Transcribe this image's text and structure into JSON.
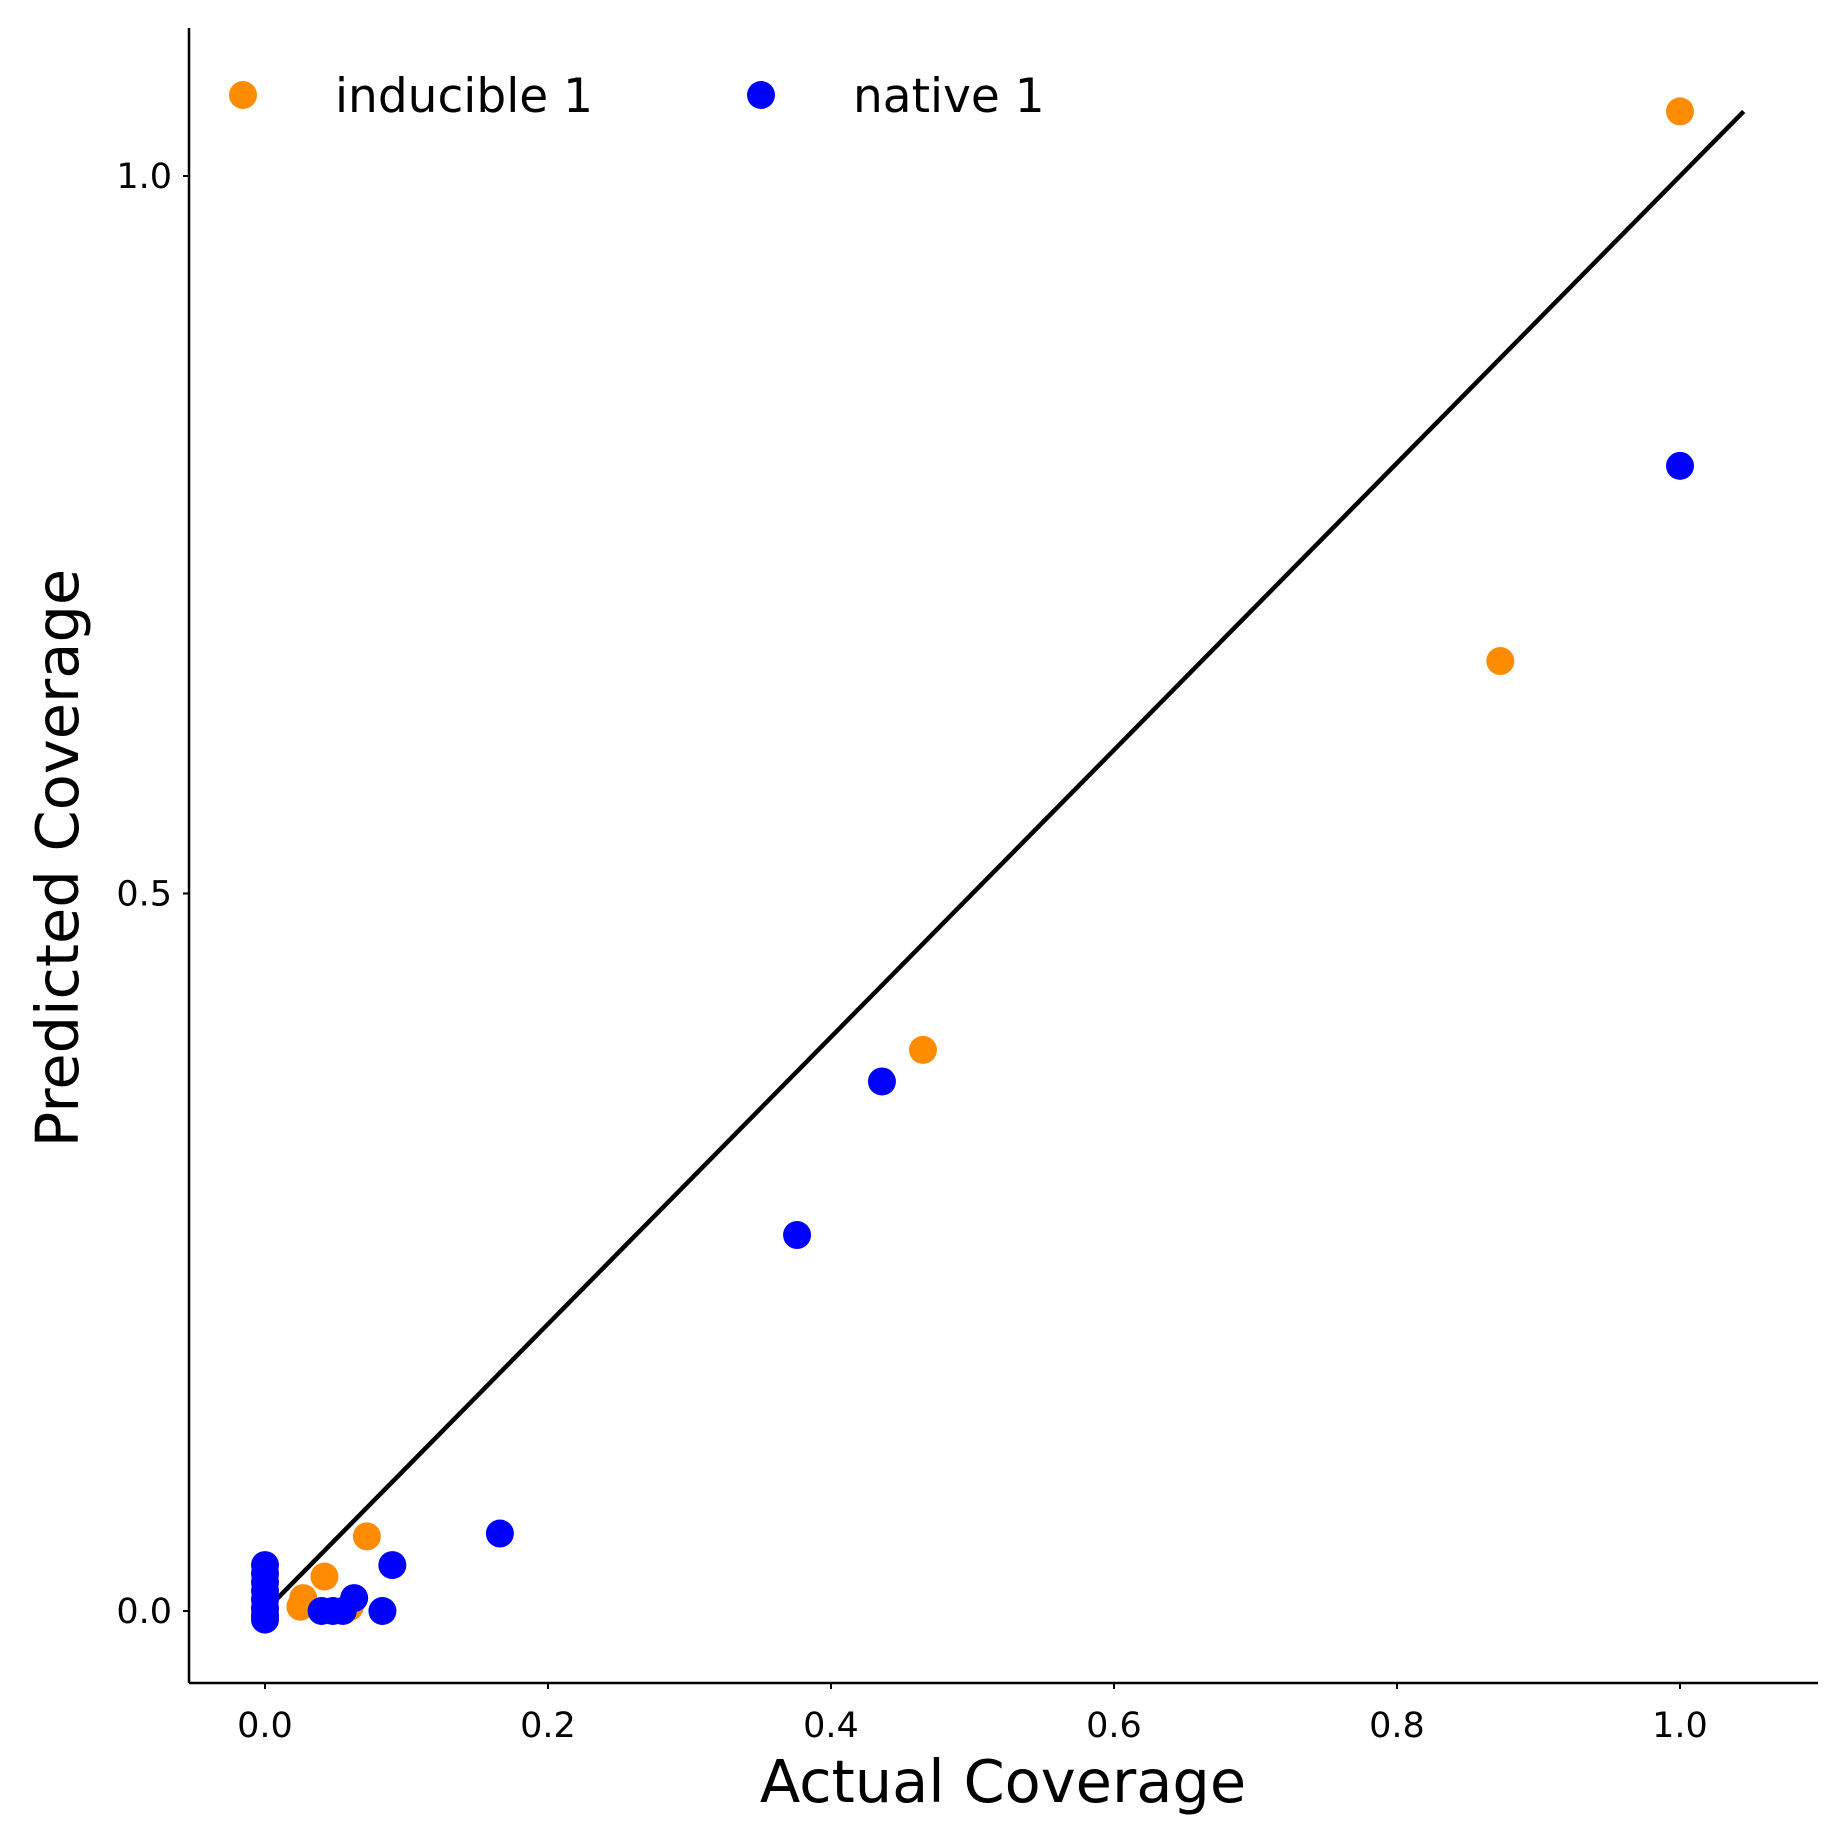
{
  "chart_data": {
    "type": "scatter",
    "xlabel": "Actual Coverage",
    "ylabel": "Predicted Coverage",
    "xlim": [
      -0.053,
      1.095
    ],
    "ylim": [
      -0.05,
      1.1
    ],
    "xticks": [
      {
        "value": 0.0,
        "label": "0.0"
      },
      {
        "value": 0.2,
        "label": "0.2"
      },
      {
        "value": 0.4,
        "label": "0.4"
      },
      {
        "value": 0.6,
        "label": "0.6"
      },
      {
        "value": 0.8,
        "label": "0.8"
      },
      {
        "value": 1.0,
        "label": "1.0"
      }
    ],
    "yticks": [
      {
        "value": 0.0,
        "label": "0.0"
      },
      {
        "value": 0.5,
        "label": "0.5"
      },
      {
        "value": 1.0,
        "label": "1.0"
      }
    ],
    "grid": false,
    "legend_position": "top-left",
    "reference_line": {
      "x": [
        0.0,
        1.045
      ],
      "y": [
        0.0,
        1.045
      ],
      "color": "#000000"
    },
    "series": [
      {
        "name": "inducible 1",
        "color": "#ff8c00",
        "points": [
          {
            "x": 1.0,
            "y": 1.045
          },
          {
            "x": 0.873,
            "y": 0.662
          },
          {
            "x": 0.465,
            "y": 0.391
          },
          {
            "x": 0.072,
            "y": 0.052
          },
          {
            "x": 0.042,
            "y": 0.024
          },
          {
            "x": 0.027,
            "y": 0.009
          },
          {
            "x": 0.025,
            "y": 0.003
          },
          {
            "x": 0.06,
            "y": 0.003
          },
          {
            "x": 0.0,
            "y": 0.0
          }
        ]
      },
      {
        "name": "native 1",
        "color": "#0000ff",
        "points": [
          {
            "x": 1.0,
            "y": 0.798
          },
          {
            "x": 0.436,
            "y": 0.369
          },
          {
            "x": 0.376,
            "y": 0.262
          },
          {
            "x": 0.166,
            "y": 0.054
          },
          {
            "x": 0.09,
            "y": 0.032
          },
          {
            "x": 0.063,
            "y": 0.009
          },
          {
            "x": 0.083,
            "y": 0.0
          },
          {
            "x": 0.04,
            "y": 0.0
          },
          {
            "x": 0.048,
            "y": 0.0
          },
          {
            "x": 0.055,
            "y": 0.0
          },
          {
            "x": 0.0,
            "y": 0.032
          },
          {
            "x": 0.0,
            "y": 0.026
          },
          {
            "x": 0.0,
            "y": 0.02
          },
          {
            "x": 0.0,
            "y": 0.014
          },
          {
            "x": 0.0,
            "y": 0.008
          },
          {
            "x": 0.0,
            "y": 0.002
          },
          {
            "x": 0.0,
            "y": -0.003
          },
          {
            "x": 0.0,
            "y": -0.006
          }
        ]
      }
    ]
  }
}
